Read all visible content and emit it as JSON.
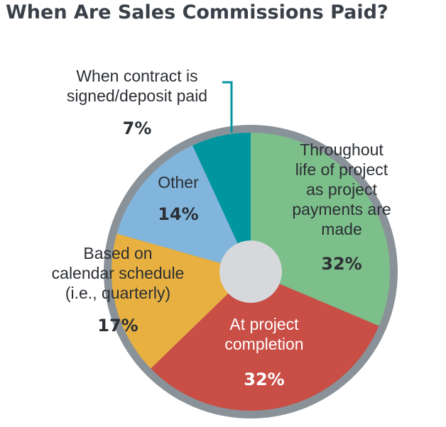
{
  "chart_data": {
    "type": "pie",
    "title": "When Are Sales Commissions Paid?",
    "slices": [
      {
        "label": "Throughout life of project as project payments are made",
        "label_lines": [
          "Throughout",
          "life of project",
          "as project",
          "payments are",
          "made"
        ],
        "value": 32,
        "value_label": "32%",
        "color": "#7dbf8a"
      },
      {
        "label": "At project completion",
        "label_lines": [
          "At project",
          "completion"
        ],
        "value": 32,
        "value_label": "32%",
        "color": "#c84e46"
      },
      {
        "label": "Based on calendar schedule (i.e., quarterly)",
        "label_lines": [
          "Based on",
          "calendar schedule",
          "(i.e., quarterly)"
        ],
        "value": 17,
        "value_label": "17%",
        "color": "#e8b040"
      },
      {
        "label": "Other",
        "label_lines": [
          "Other"
        ],
        "value": 14,
        "value_label": "14%",
        "color": "#82b5dc"
      },
      {
        "label": "When contract is signed/deposit paid",
        "label_lines": [
          "When contract is",
          "signed/deposit paid"
        ],
        "value": 7,
        "value_label": "7%",
        "color": "#0096a0"
      }
    ],
    "colors": {
      "ring": "#8a9299",
      "center": "#d6d8db",
      "dark_text": "#2b2f34",
      "light_text": "#ffffff",
      "callout": "#0096a0"
    }
  }
}
